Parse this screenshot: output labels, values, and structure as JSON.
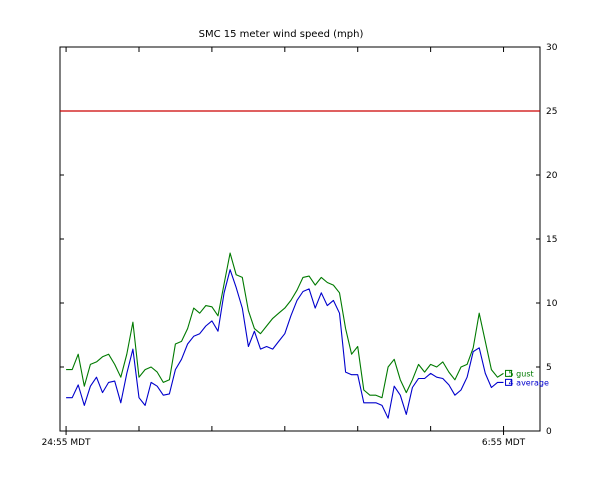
{
  "colors": {
    "gust": "#007a00",
    "average": "#0000cc",
    "threshold": "#cc0000",
    "axis": "#000000",
    "background": "#ffffff"
  },
  "chart_data": {
    "type": "line",
    "title": "SMC 15 meter wind speed (mph)",
    "xlabel": "",
    "ylabel": "",
    "ylim": [
      0,
      30
    ],
    "y_ticks": [
      0,
      5,
      10,
      15,
      20,
      25,
      30
    ],
    "y_tick_labels": [
      "0",
      "5",
      "10",
      "15",
      "20",
      "25",
      "30"
    ],
    "y_axis_side": "right",
    "grid": false,
    "x_tick_labels": [
      {
        "index": 0,
        "label": "24:55 MDT"
      },
      {
        "index": 72,
        "label": "6:55 MDT"
      }
    ],
    "x_range": [
      -1,
      78
    ],
    "threshold": {
      "value": 25
    },
    "legend_placement": "at end of lines",
    "series": [
      {
        "name": "gust",
        "legend_label": "5 gust",
        "color": "#007a00",
        "values": [
          4.8,
          4.8,
          6.0,
          3.5,
          5.2,
          5.4,
          5.8,
          6.0,
          5.2,
          4.2,
          6.0,
          8.5,
          4.2,
          4.8,
          5.0,
          4.6,
          3.8,
          4.0,
          6.8,
          7.0,
          8.0,
          9.6,
          9.2,
          9.8,
          9.7,
          9.0,
          11.5,
          13.9,
          12.2,
          12.0,
          9.4,
          8.0,
          7.6,
          8.2,
          8.8,
          9.2,
          9.6,
          10.2,
          11.0,
          12.0,
          12.1,
          11.4,
          12.0,
          11.6,
          11.4,
          10.8,
          8.0,
          6.0,
          6.6,
          3.2,
          2.8,
          2.8,
          2.6,
          5.0,
          5.6,
          4.0,
          3.0,
          4.0,
          5.2,
          4.6,
          5.2,
          5.0,
          5.4,
          4.6,
          4.0,
          5.0,
          5.2,
          6.5,
          9.2,
          7.0,
          4.8,
          4.2,
          4.5
        ]
      },
      {
        "name": "average",
        "legend_label": "4 average",
        "color": "#0000cc",
        "values": [
          2.6,
          2.6,
          3.6,
          2.0,
          3.5,
          4.2,
          3.0,
          3.8,
          3.9,
          2.2,
          4.5,
          6.4,
          2.6,
          2.0,
          3.8,
          3.5,
          2.8,
          2.9,
          4.8,
          5.6,
          6.8,
          7.4,
          7.6,
          8.2,
          8.6,
          7.8,
          10.8,
          12.6,
          11.2,
          9.6,
          6.6,
          7.8,
          6.4,
          6.6,
          6.4,
          7.0,
          7.6,
          9.0,
          10.2,
          10.9,
          11.1,
          9.6,
          10.8,
          9.8,
          10.2,
          9.2,
          4.6,
          4.4,
          4.4,
          2.2,
          2.2,
          2.2,
          2.0,
          1.0,
          3.5,
          2.8,
          1.3,
          3.4,
          4.1,
          4.1,
          4.5,
          4.2,
          4.1,
          3.6,
          2.8,
          3.2,
          4.2,
          6.2,
          6.5,
          4.5,
          3.4,
          3.8,
          3.8
        ]
      }
    ]
  }
}
